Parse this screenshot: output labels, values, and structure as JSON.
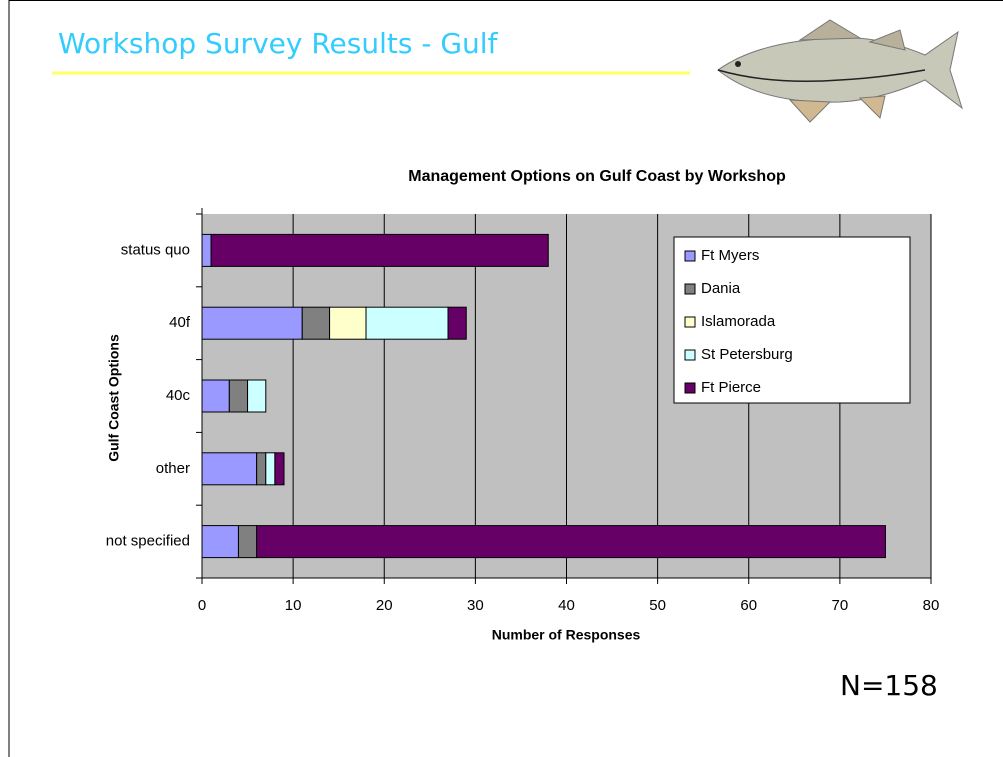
{
  "slide": {
    "title": "Workshop Survey Results - Gulf",
    "note": "N=158"
  },
  "chart_data": {
    "type": "stacked_barh",
    "title": "Management Options on Gulf Coast by Workshop",
    "xlabel": "Number of Responses",
    "ylabel": "Gulf Coast Options",
    "categories": [
      "status quo",
      "40f",
      "40c",
      "other",
      "not specified"
    ],
    "series": [
      {
        "name": "Ft Myers",
        "color": "#9999ff",
        "values": [
          1,
          11,
          3,
          6,
          4
        ]
      },
      {
        "name": "Dania",
        "color": "#808080",
        "values": [
          0,
          3,
          2,
          1,
          2
        ]
      },
      {
        "name": "Islamorada",
        "color": "#ffffcc",
        "values": [
          0,
          4,
          0,
          0,
          0
        ]
      },
      {
        "name": "St Petersburg",
        "color": "#ccffff",
        "values": [
          0,
          9,
          2,
          1,
          0
        ]
      },
      {
        "name": "Ft Pierce",
        "color": "#660066",
        "values": [
          37,
          2,
          0,
          1,
          69
        ]
      }
    ],
    "xlim": [
      0,
      80
    ],
    "xticks": [
      0,
      10,
      20,
      30,
      40,
      50,
      60,
      70,
      80
    ],
    "grid": true,
    "legend": "upper right",
    "background": "#c0c0c0"
  }
}
